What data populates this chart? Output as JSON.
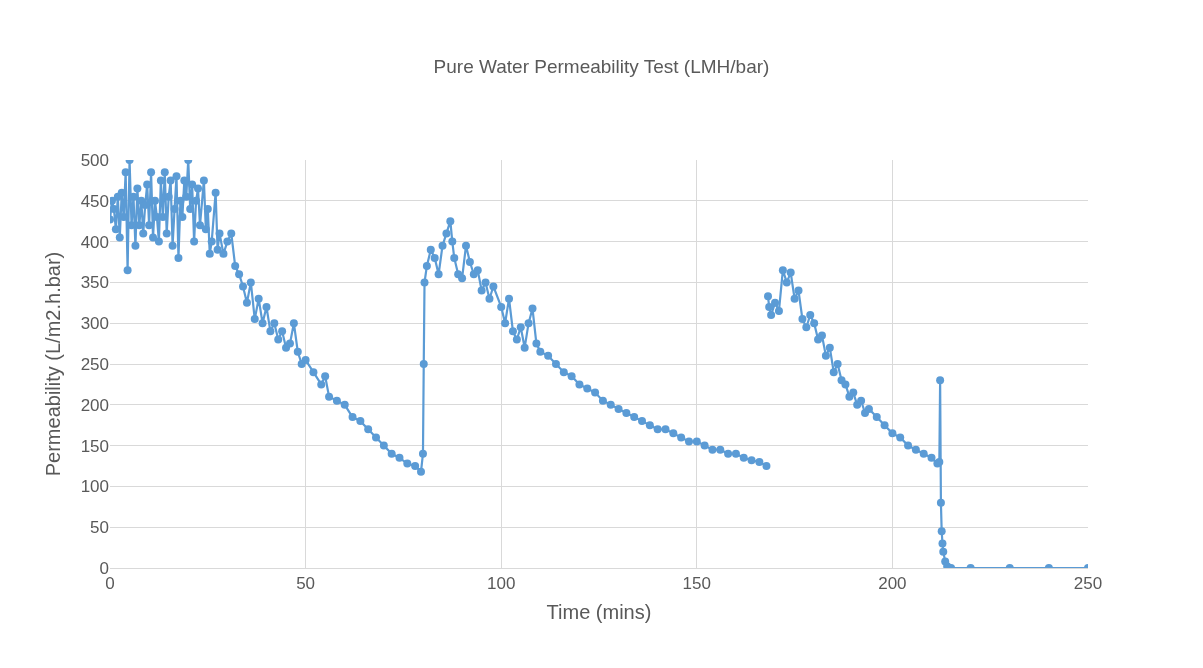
{
  "chart_data": {
    "type": "line",
    "title": "Pure Water Permeability Test (LMH/bar)",
    "xlabel": "Time (mins)",
    "ylabel": "Permeability (L/m2.h.bar)",
    "xlim": [
      0,
      250
    ],
    "xticks": [
      0,
      50,
      100,
      150,
      200,
      250
    ],
    "ylim": [
      0,
      500
    ],
    "yticks": [
      0,
      50,
      100,
      150,
      200,
      250,
      300,
      350,
      400,
      450,
      500
    ],
    "grid": true,
    "legend": false,
    "marker": "circle",
    "line_style": "solid",
    "series": [
      {
        "color": "#5b9bd5",
        "x": [
          0,
          0.5,
          1,
          1.5,
          2,
          2.5,
          3,
          3.5,
          4,
          4.5,
          5,
          5.5,
          6,
          6.5,
          7,
          7.5,
          8,
          8.5,
          9,
          9.5,
          10,
          10.5,
          11,
          11.5,
          12,
          12.5,
          13,
          13.5,
          14,
          14.5,
          15,
          15.5,
          16,
          16.5,
          17,
          17.5,
          18,
          18.5,
          19,
          19.5,
          20,
          20.5,
          21,
          21.5,
          22,
          22.5,
          23,
          24,
          24.5,
          25,
          25.5,
          26,
          27,
          27.5,
          28,
          29,
          30,
          31,
          32,
          33,
          34,
          35,
          36,
          37,
          38,
          39,
          40,
          41,
          42,
          43,
          44,
          45,
          46,
          47,
          48,
          49,
          50,
          52,
          54,
          55,
          56,
          58,
          60,
          62,
          64,
          66,
          68,
          70,
          72,
          74,
          76,
          78,
          79.5,
          80,
          80.2,
          80.4,
          81,
          82,
          83,
          84,
          85,
          86,
          87,
          87.5,
          88,
          89,
          90,
          91,
          92,
          93,
          94,
          95,
          96,
          97,
          98,
          100,
          101,
          102,
          103,
          104,
          105,
          106,
          107,
          108,
          109,
          110,
          112,
          114,
          116,
          118,
          120,
          122,
          124,
          126,
          128,
          130,
          132,
          134,
          136,
          138,
          140,
          142,
          144,
          146,
          148,
          150,
          152,
          154,
          156,
          158,
          160,
          162,
          164,
          166,
          167.8,
          168,
          168.2,
          168.5,
          169,
          170,
          171,
          172,
          173,
          174,
          175,
          176,
          177,
          178,
          179,
          180,
          181,
          182,
          183,
          184,
          185,
          186,
          187,
          188,
          189,
          190,
          191,
          192,
          193,
          194,
          196,
          198,
          200,
          202,
          204,
          206,
          208,
          210,
          211.5,
          212,
          212.2,
          212.4,
          212.6,
          212.8,
          213,
          213.5,
          214,
          215,
          220,
          230,
          240,
          250
        ],
        "values": [
          427,
          450,
          440,
          415,
          455,
          405,
          460,
          430,
          485,
          365,
          500,
          420,
          455,
          395,
          465,
          420,
          450,
          410,
          445,
          470,
          420,
          485,
          405,
          450,
          430,
          400,
          475,
          430,
          485,
          410,
          455,
          475,
          395,
          440,
          480,
          380,
          450,
          430,
          475,
          455,
          500,
          440,
          470,
          400,
          450,
          465,
          420,
          475,
          415,
          440,
          385,
          400,
          460,
          390,
          410,
          385,
          400,
          410,
          370,
          360,
          345,
          325,
          350,
          305,
          330,
          300,
          320,
          290,
          300,
          280,
          290,
          270,
          275,
          300,
          265,
          250,
          255,
          240,
          225,
          235,
          210,
          205,
          200,
          185,
          180,
          170,
          160,
          150,
          140,
          135,
          128,
          125,
          118,
          140,
          250,
          350,
          370,
          390,
          380,
          360,
          395,
          410,
          425,
          400,
          380,
          360,
          355,
          395,
          375,
          360,
          365,
          340,
          350,
          330,
          345,
          320,
          300,
          330,
          290,
          280,
          295,
          270,
          300,
          318,
          275,
          265,
          260,
          250,
          240,
          235,
          225,
          220,
          215,
          205,
          200,
          195,
          190,
          185,
          180,
          175,
          170,
          170,
          165,
          160,
          155,
          155,
          150,
          145,
          145,
          140,
          140,
          135,
          132,
          130,
          125,
          null,
          333,
          320,
          310,
          325,
          315,
          365,
          350,
          362,
          330,
          340,
          305,
          295,
          310,
          300,
          280,
          285,
          260,
          270,
          240,
          250,
          230,
          225,
          210,
          215,
          200,
          205,
          190,
          195,
          185,
          175,
          165,
          160,
          150,
          145,
          140,
          135,
          128,
          130,
          230,
          80,
          45,
          30,
          20,
          8,
          2,
          0,
          0,
          0,
          0,
          0
        ]
      }
    ]
  }
}
